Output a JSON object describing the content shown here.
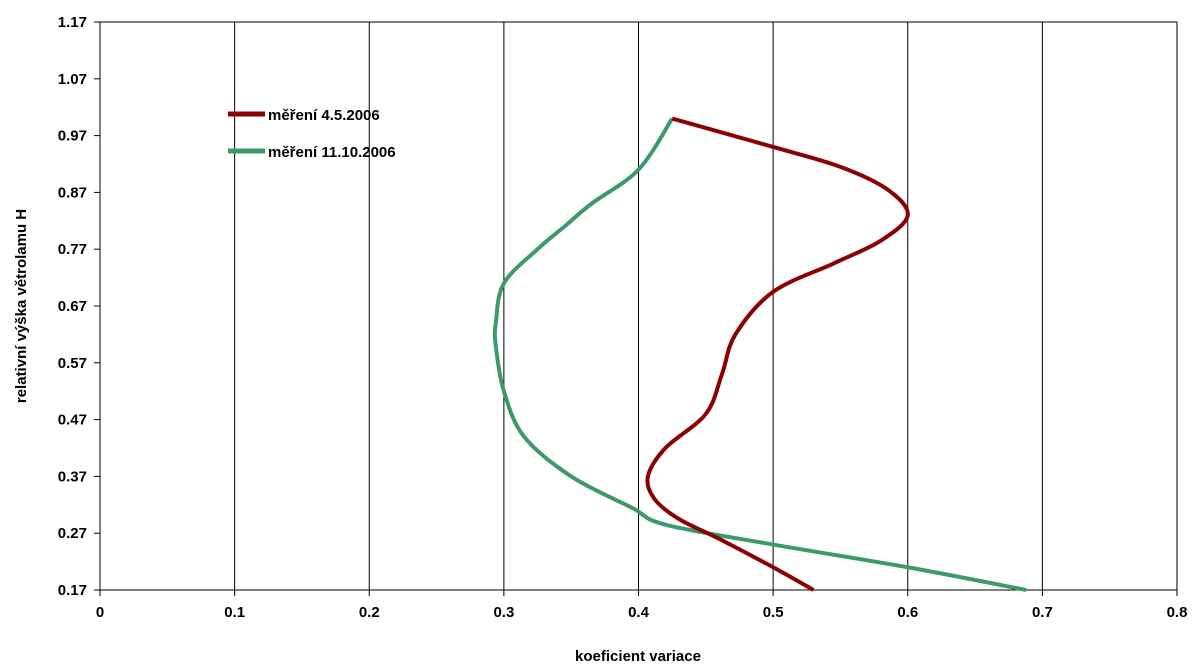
{
  "chart_data": {
    "type": "line",
    "title": "",
    "xlabel": "koeficient variace",
    "ylabel": "relativní výška větrolamu H",
    "xlim": [
      0,
      0.8
    ],
    "ylim": [
      0.17,
      1.17
    ],
    "x_ticks": [
      "0",
      "0.1",
      "0.2",
      "0.3",
      "0.4",
      "0.5",
      "0.6",
      "0.7",
      "0.8"
    ],
    "y_ticks": [
      "0.17",
      "0.27",
      "0.37",
      "0.47",
      "0.57",
      "0.67",
      "0.77",
      "0.87",
      "0.97",
      "1.07",
      "1.17"
    ],
    "grid": "vertical",
    "legend_position": "top-left",
    "series": [
      {
        "name": "měření 4.5.2006",
        "color": "#8b0000",
        "points": [
          [
            0.53,
            0.17
          ],
          [
            0.5,
            0.21
          ],
          [
            0.46,
            0.26
          ],
          [
            0.43,
            0.295
          ],
          [
            0.412,
            0.33
          ],
          [
            0.407,
            0.37
          ],
          [
            0.42,
            0.42
          ],
          [
            0.45,
            0.48
          ],
          [
            0.462,
            0.55
          ],
          [
            0.472,
            0.62
          ],
          [
            0.5,
            0.695
          ],
          [
            0.545,
            0.745
          ],
          [
            0.58,
            0.785
          ],
          [
            0.6,
            0.83
          ],
          [
            0.585,
            0.875
          ],
          [
            0.55,
            0.915
          ],
          [
            0.5,
            0.95
          ],
          [
            0.425,
            1.0
          ]
        ]
      },
      {
        "name": "měření 11.10.2006",
        "color": "#3a9a6a",
        "points": [
          [
            0.688,
            0.17
          ],
          [
            0.6,
            0.21
          ],
          [
            0.5,
            0.25
          ],
          [
            0.42,
            0.285
          ],
          [
            0.395,
            0.315
          ],
          [
            0.35,
            0.37
          ],
          [
            0.315,
            0.44
          ],
          [
            0.3,
            0.52
          ],
          [
            0.294,
            0.6
          ],
          [
            0.294,
            0.64
          ],
          [
            0.3,
            0.71
          ],
          [
            0.325,
            0.77
          ],
          [
            0.345,
            0.81
          ],
          [
            0.365,
            0.85
          ],
          [
            0.4,
            0.91
          ],
          [
            0.425,
            1.0
          ]
        ]
      }
    ]
  }
}
